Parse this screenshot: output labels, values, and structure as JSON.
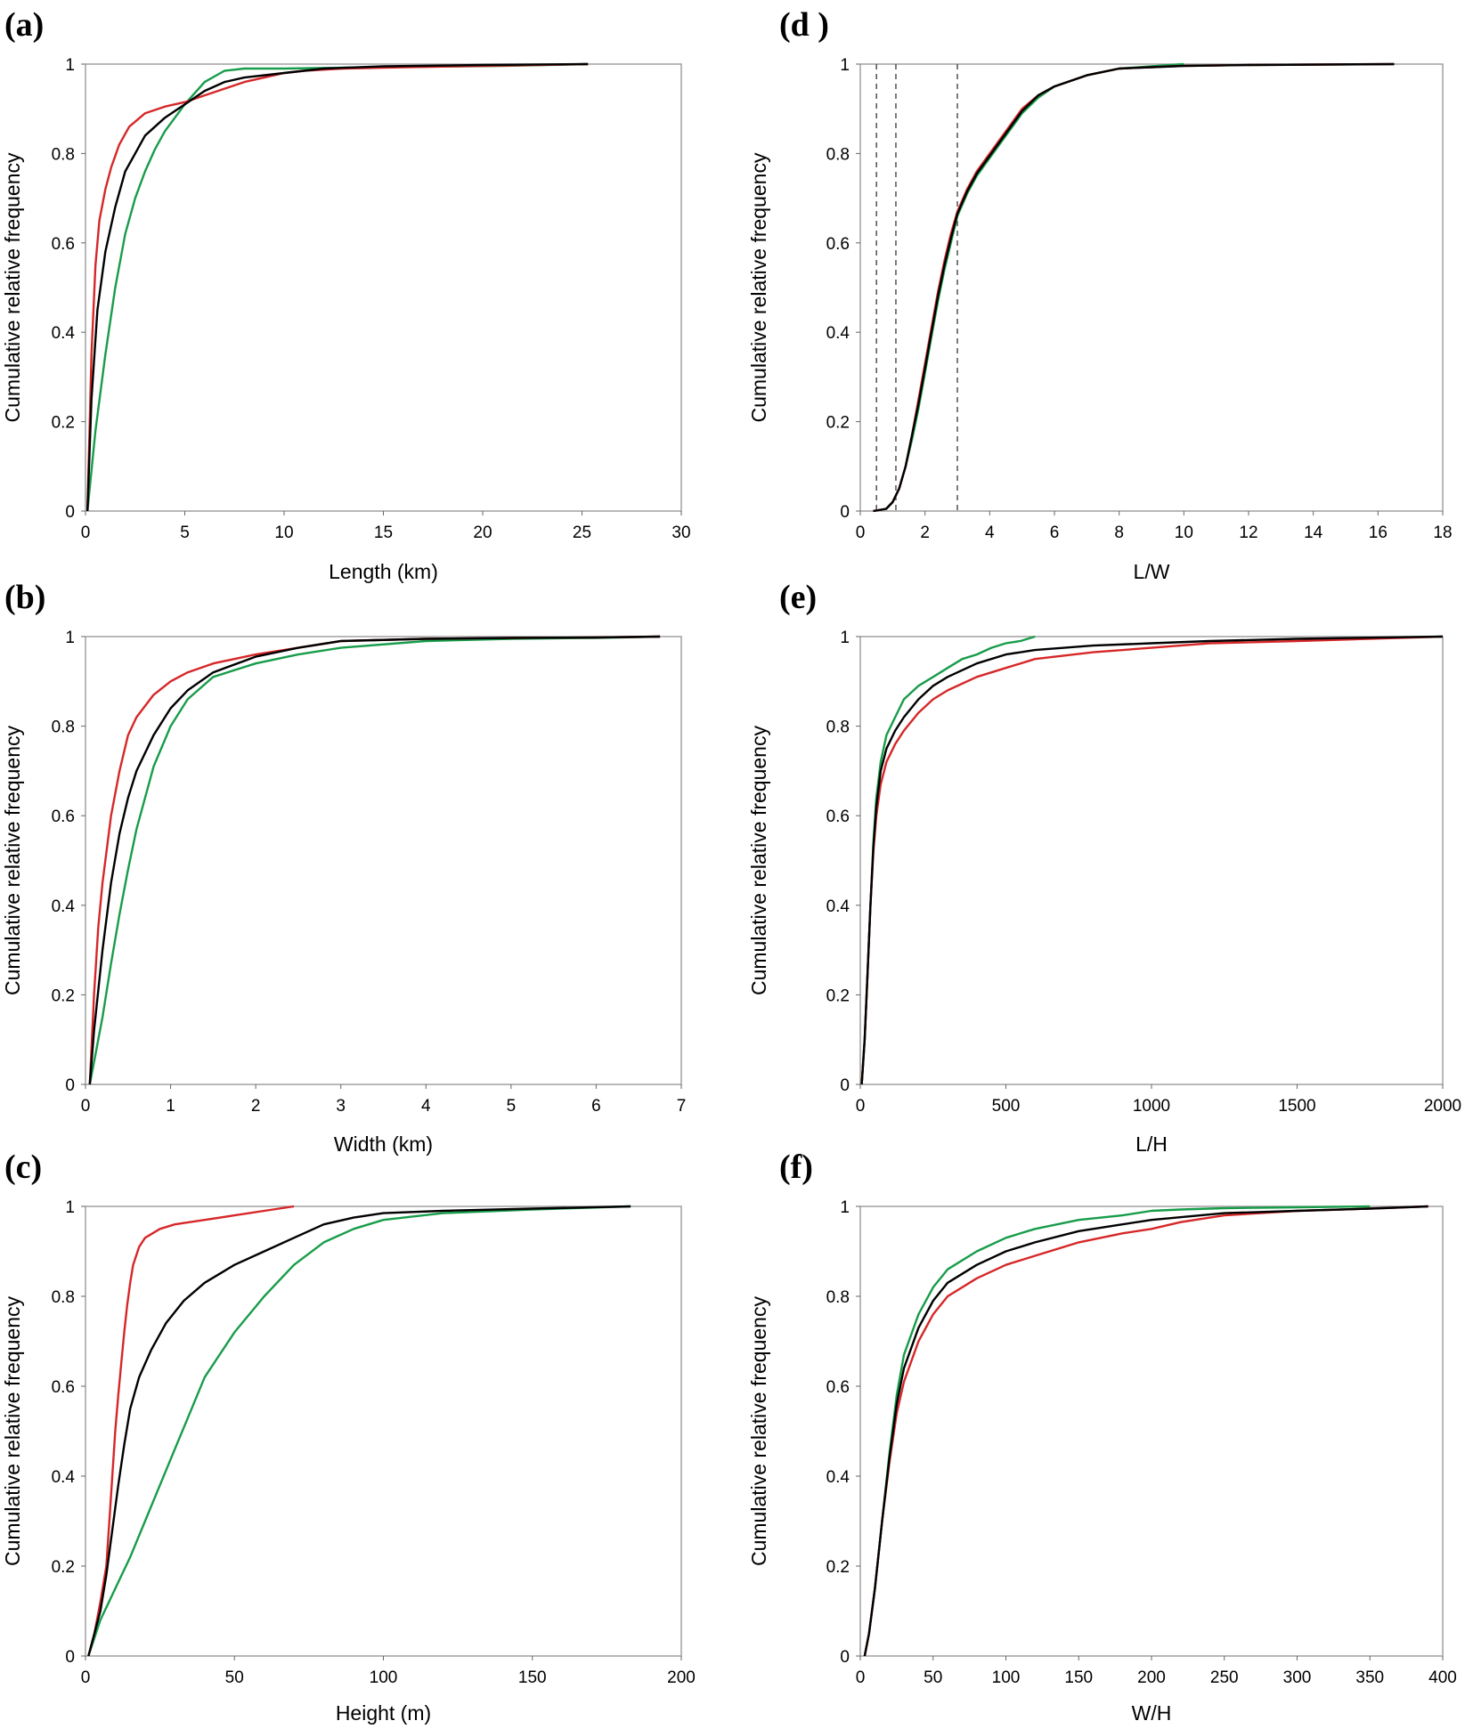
{
  "colors": {
    "red": "#d62728",
    "black": "#000000",
    "green": "#179c4a"
  },
  "chart_data": [
    {
      "panel_label": "(a)",
      "type": "line",
      "xlabel": "Length (km)",
      "ylabel": "Cumulative relative frequency",
      "xlim": [
        0,
        30
      ],
      "ylim": [
        0,
        1
      ],
      "xticks": [
        "0",
        "5",
        "10",
        "15",
        "20",
        "25",
        "30"
      ],
      "yticks": [
        "0",
        "0.2",
        "0.4",
        "0.6",
        "0.8",
        "1"
      ],
      "series": [
        {
          "color": "red",
          "x": [
            0.1,
            0.3,
            0.5,
            0.7,
            1,
            1.3,
            1.7,
            2.2,
            3,
            4,
            5,
            6,
            7,
            8,
            9,
            10,
            11,
            13,
            16,
            20,
            25.3
          ],
          "y": [
            0,
            0.35,
            0.55,
            0.65,
            0.72,
            0.77,
            0.82,
            0.86,
            0.89,
            0.905,
            0.915,
            0.93,
            0.945,
            0.96,
            0.97,
            0.98,
            0.985,
            0.99,
            0.993,
            0.996,
            1
          ]
        },
        {
          "color": "black",
          "x": [
            0.1,
            0.3,
            0.6,
            1,
            1.5,
            2,
            2.5,
            3,
            4,
            5,
            6,
            7,
            8,
            10,
            12,
            15,
            20,
            25.3
          ],
          "y": [
            0,
            0.25,
            0.45,
            0.58,
            0.68,
            0.76,
            0.8,
            0.84,
            0.88,
            0.91,
            0.94,
            0.96,
            0.97,
            0.98,
            0.99,
            0.995,
            0.998,
            1
          ]
        },
        {
          "color": "green",
          "x": [
            0.1,
            0.5,
            1,
            1.5,
            2,
            2.5,
            3,
            3.5,
            4,
            5,
            6,
            7,
            8,
            10,
            13,
            17,
            21,
            25.3
          ],
          "y": [
            0,
            0.18,
            0.35,
            0.5,
            0.62,
            0.7,
            0.76,
            0.81,
            0.85,
            0.91,
            0.96,
            0.985,
            0.99,
            0.99,
            0.992,
            0.994,
            0.996,
            1
          ]
        }
      ]
    },
    {
      "panel_label": "(b)",
      "type": "line",
      "xlabel": "Width (km)",
      "ylabel": "Cumulative relative frequency",
      "xlim": [
        0,
        7
      ],
      "ylim": [
        0,
        1
      ],
      "xticks": [
        "0",
        "1",
        "2",
        "3",
        "4",
        "5",
        "6",
        "7"
      ],
      "yticks": [
        "0",
        "0.2",
        "0.4",
        "0.6",
        "0.8",
        "1"
      ],
      "series": [
        {
          "color": "red",
          "x": [
            0.05,
            0.1,
            0.15,
            0.2,
            0.3,
            0.4,
            0.5,
            0.6,
            0.8,
            1,
            1.2,
            1.5,
            2,
            2.5,
            3,
            4,
            5,
            6,
            6.75
          ],
          "y": [
            0,
            0.2,
            0.35,
            0.45,
            0.6,
            0.7,
            0.78,
            0.82,
            0.87,
            0.9,
            0.92,
            0.94,
            0.96,
            0.975,
            0.99,
            0.995,
            0.997,
            0.998,
            1
          ]
        },
        {
          "color": "black",
          "x": [
            0.05,
            0.1,
            0.2,
            0.3,
            0.4,
            0.5,
            0.6,
            0.8,
            1,
            1.2,
            1.5,
            2,
            2.5,
            3,
            4,
            5,
            6,
            6.75
          ],
          "y": [
            0,
            0.12,
            0.3,
            0.45,
            0.56,
            0.64,
            0.7,
            0.78,
            0.84,
            0.88,
            0.92,
            0.955,
            0.975,
            0.99,
            0.995,
            0.997,
            0.998,
            1
          ]
        },
        {
          "color": "green",
          "x": [
            0.05,
            0.1,
            0.2,
            0.3,
            0.4,
            0.5,
            0.6,
            0.7,
            0.8,
            1,
            1.2,
            1.5,
            2,
            2.5,
            3,
            4,
            5,
            6,
            6.75
          ],
          "y": [
            0,
            0.05,
            0.15,
            0.27,
            0.38,
            0.48,
            0.57,
            0.64,
            0.71,
            0.8,
            0.86,
            0.91,
            0.94,
            0.96,
            0.975,
            0.99,
            0.995,
            0.997,
            1
          ]
        }
      ]
    },
    {
      "panel_label": "(c)",
      "type": "line",
      "xlabel": "Height (m)",
      "ylabel": "Cumulative relative frequency",
      "xlim": [
        0,
        200
      ],
      "ylim": [
        0,
        1
      ],
      "xticks": [
        "0",
        "50",
        "100",
        "150",
        "200"
      ],
      "yticks": [
        "0",
        "0.2",
        "0.4",
        "0.6",
        "0.8",
        "1"
      ],
      "series": [
        {
          "color": "red",
          "x": [
            1,
            3,
            5,
            7,
            8,
            9,
            10,
            11,
            12,
            13,
            14,
            15,
            16,
            18,
            20,
            25,
            30,
            40,
            50,
            60,
            70
          ],
          "y": [
            0,
            0.05,
            0.12,
            0.2,
            0.3,
            0.4,
            0.5,
            0.58,
            0.65,
            0.72,
            0.78,
            0.83,
            0.87,
            0.91,
            0.93,
            0.95,
            0.96,
            0.97,
            0.98,
            0.99,
            1
          ]
        },
        {
          "color": "black",
          "x": [
            1,
            3,
            5,
            7,
            9,
            11,
            13,
            15,
            18,
            22,
            27,
            33,
            40,
            50,
            60,
            70,
            80,
            90,
            100,
            120,
            150,
            183
          ],
          "y": [
            0,
            0.05,
            0.1,
            0.18,
            0.28,
            0.38,
            0.47,
            0.55,
            0.62,
            0.68,
            0.74,
            0.79,
            0.83,
            0.87,
            0.9,
            0.93,
            0.96,
            0.975,
            0.985,
            0.99,
            0.995,
            1
          ]
        },
        {
          "color": "green",
          "x": [
            1,
            5,
            10,
            15,
            20,
            25,
            30,
            35,
            40,
            50,
            60,
            70,
            80,
            90,
            100,
            120,
            150,
            183
          ],
          "y": [
            0,
            0.08,
            0.15,
            0.22,
            0.3,
            0.38,
            0.46,
            0.54,
            0.62,
            0.72,
            0.8,
            0.87,
            0.92,
            0.95,
            0.97,
            0.985,
            0.993,
            1
          ]
        }
      ]
    },
    {
      "panel_label": "(d )",
      "type": "line",
      "xlabel": "L/W",
      "ylabel": "Cumulative relative frequency",
      "xlim": [
        0,
        18
      ],
      "ylim": [
        0,
        1
      ],
      "xticks": [
        "0",
        "2",
        "4",
        "6",
        "8",
        "10",
        "12",
        "14",
        "16",
        "18"
      ],
      "yticks": [
        "0",
        "0.2",
        "0.4",
        "0.6",
        "0.8",
        "1"
      ],
      "reference_lines_x": [
        0.5,
        1.1,
        3
      ],
      "series": [
        {
          "color": "red",
          "x": [
            0.4,
            0.8,
            1,
            1.2,
            1.4,
            1.6,
            1.8,
            2,
            2.2,
            2.4,
            2.6,
            2.8,
            3,
            3.3,
            3.6,
            4,
            4.5,
            5,
            5.5,
            6,
            7,
            8,
            9,
            10,
            12,
            16.5
          ],
          "y": [
            0,
            0.005,
            0.02,
            0.05,
            0.1,
            0.17,
            0.25,
            0.33,
            0.41,
            0.49,
            0.56,
            0.62,
            0.67,
            0.72,
            0.76,
            0.8,
            0.85,
            0.9,
            0.93,
            0.95,
            0.975,
            0.99,
            0.993,
            0.996,
            0.998,
            1
          ]
        },
        {
          "color": "black",
          "x": [
            0.4,
            0.8,
            1,
            1.2,
            1.4,
            1.6,
            1.8,
            2,
            2.2,
            2.4,
            2.6,
            2.8,
            3,
            3.3,
            3.6,
            4,
            4.5,
            5,
            5.5,
            6,
            7,
            8,
            9,
            10,
            12,
            16.5
          ],
          "y": [
            0,
            0.005,
            0.02,
            0.05,
            0.1,
            0.17,
            0.24,
            0.32,
            0.4,
            0.48,
            0.55,
            0.61,
            0.665,
            0.715,
            0.755,
            0.795,
            0.845,
            0.895,
            0.93,
            0.95,
            0.975,
            0.99,
            0.993,
            0.996,
            0.998,
            1
          ]
        },
        {
          "color": "green",
          "x": [
            0.4,
            0.8,
            1,
            1.2,
            1.4,
            1.6,
            1.8,
            2,
            2.2,
            2.4,
            2.6,
            2.8,
            3,
            3.3,
            3.6,
            4,
            4.5,
            5,
            5.5,
            6,
            7,
            8,
            9,
            10
          ],
          "y": [
            0,
            0.005,
            0.02,
            0.05,
            0.1,
            0.16,
            0.23,
            0.31,
            0.39,
            0.47,
            0.54,
            0.6,
            0.66,
            0.71,
            0.75,
            0.79,
            0.84,
            0.89,
            0.925,
            0.95,
            0.975,
            0.99,
            0.995,
            1
          ]
        }
      ]
    },
    {
      "panel_label": "(e)",
      "type": "line",
      "xlabel": "L/H",
      "ylabel": "Cumulative relative frequency",
      "xlim": [
        0,
        2000
      ],
      "ylim": [
        0,
        1
      ],
      "xticks": [
        "0",
        "500",
        "1000",
        "1500",
        "2000"
      ],
      "yticks": [
        "0",
        "0.2",
        "0.4",
        "0.6",
        "0.8",
        "1"
      ],
      "series": [
        {
          "color": "red",
          "x": [
            5,
            15,
            25,
            35,
            45,
            55,
            70,
            90,
            120,
            150,
            200,
            250,
            300,
            400,
            500,
            600,
            800,
            1000,
            1200,
            1500,
            2000
          ],
          "y": [
            0,
            0.1,
            0.25,
            0.4,
            0.52,
            0.6,
            0.67,
            0.72,
            0.76,
            0.79,
            0.83,
            0.86,
            0.88,
            0.91,
            0.93,
            0.95,
            0.965,
            0.975,
            0.985,
            0.99,
            1
          ]
        },
        {
          "color": "black",
          "x": [
            5,
            15,
            25,
            35,
            45,
            55,
            70,
            90,
            120,
            150,
            200,
            250,
            300,
            400,
            500,
            600,
            800,
            1000,
            1200,
            1500,
            2000
          ],
          "y": [
            0,
            0.1,
            0.25,
            0.4,
            0.53,
            0.62,
            0.7,
            0.75,
            0.79,
            0.82,
            0.86,
            0.89,
            0.91,
            0.94,
            0.96,
            0.97,
            0.98,
            0.985,
            0.99,
            0.995,
            1
          ]
        },
        {
          "color": "green",
          "x": [
            5,
            15,
            25,
            35,
            45,
            55,
            70,
            90,
            120,
            150,
            200,
            250,
            300,
            350,
            400,
            450,
            500,
            550,
            600
          ],
          "y": [
            0,
            0.1,
            0.25,
            0.4,
            0.54,
            0.64,
            0.72,
            0.78,
            0.82,
            0.86,
            0.89,
            0.91,
            0.93,
            0.95,
            0.96,
            0.975,
            0.985,
            0.99,
            1
          ]
        }
      ]
    },
    {
      "panel_label": "(f)",
      "type": "line",
      "xlabel": "W/H",
      "ylabel": "Cumulative relative frequency",
      "xlim": [
        0,
        400
      ],
      "ylim": [
        0,
        1
      ],
      "xticks": [
        "0",
        "50",
        "100",
        "150",
        "200",
        "250",
        "300",
        "350",
        "400"
      ],
      "yticks": [
        "0",
        "0.2",
        "0.4",
        "0.6",
        "0.8",
        "1"
      ],
      "series": [
        {
          "color": "red",
          "x": [
            3,
            6,
            10,
            15,
            20,
            25,
            30,
            40,
            50,
            60,
            80,
            100,
            120,
            150,
            180,
            200,
            220,
            250,
            300,
            350,
            390
          ],
          "y": [
            0,
            0.05,
            0.15,
            0.3,
            0.43,
            0.54,
            0.61,
            0.7,
            0.76,
            0.8,
            0.84,
            0.87,
            0.89,
            0.92,
            0.94,
            0.95,
            0.965,
            0.98,
            0.99,
            0.995,
            1
          ]
        },
        {
          "color": "black",
          "x": [
            3,
            6,
            10,
            15,
            20,
            25,
            30,
            40,
            50,
            60,
            80,
            100,
            120,
            150,
            180,
            200,
            250,
            300,
            350,
            390
          ],
          "y": [
            0,
            0.05,
            0.15,
            0.3,
            0.44,
            0.56,
            0.64,
            0.73,
            0.79,
            0.83,
            0.87,
            0.9,
            0.92,
            0.945,
            0.96,
            0.97,
            0.985,
            0.99,
            0.995,
            1
          ]
        },
        {
          "color": "green",
          "x": [
            3,
            6,
            10,
            15,
            20,
            25,
            30,
            40,
            50,
            60,
            80,
            100,
            120,
            150,
            180,
            200,
            220,
            250,
            300,
            350
          ],
          "y": [
            0,
            0.05,
            0.15,
            0.3,
            0.45,
            0.58,
            0.67,
            0.76,
            0.82,
            0.86,
            0.9,
            0.93,
            0.95,
            0.97,
            0.98,
            0.99,
            0.993,
            0.996,
            0.998,
            1
          ]
        }
      ]
    }
  ]
}
